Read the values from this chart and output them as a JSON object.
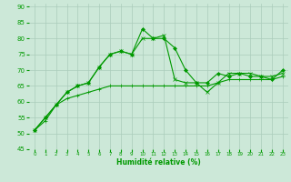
{
  "xlabel": "Humidité relative (%)",
  "background_color": "#cce8d8",
  "grid_color": "#aaccbb",
  "line_color": "#009900",
  "xlim": [
    -0.5,
    23.5
  ],
  "ylim": [
    45,
    91
  ],
  "yticks": [
    45,
    50,
    55,
    60,
    65,
    70,
    75,
    80,
    85,
    90
  ],
  "xticks": [
    0,
    1,
    2,
    3,
    4,
    5,
    6,
    7,
    8,
    9,
    10,
    11,
    12,
    13,
    14,
    15,
    16,
    17,
    18,
    19,
    20,
    21,
    22,
    23
  ],
  "line1_y": [
    51,
    55,
    59,
    63,
    65,
    66,
    71,
    75,
    76,
    75,
    83,
    80,
    80,
    77,
    70,
    66,
    66,
    69,
    68,
    69,
    68,
    68,
    67,
    70
  ],
  "line2_y": [
    51,
    55,
    59,
    63,
    65,
    66,
    71,
    75,
    76,
    75,
    80,
    80,
    81,
    67,
    66,
    66,
    63,
    66,
    69,
    69,
    69,
    68,
    68,
    69
  ],
  "line3_y": [
    51,
    54,
    59,
    61,
    62,
    63,
    64,
    65,
    65,
    65,
    65,
    65,
    65,
    65,
    65,
    65,
    65,
    66,
    67,
    67,
    67,
    67,
    67,
    68
  ]
}
